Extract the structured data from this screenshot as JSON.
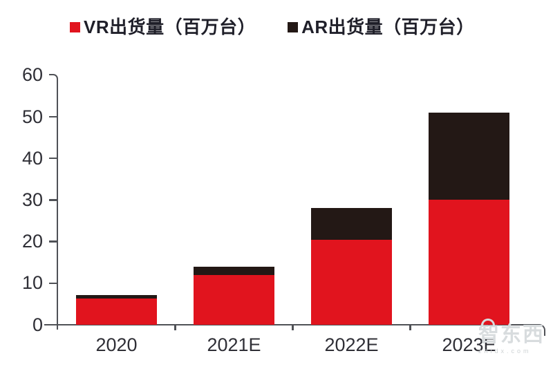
{
  "legend": [
    {
      "label": "VR出货量（百万台）",
      "color": "#E1141E"
    },
    {
      "label": "AR出货量（百万台）",
      "color": "#231815"
    }
  ],
  "chart_data": {
    "type": "bar",
    "stacked": true,
    "categories": [
      "2020",
      "2021E",
      "2022E",
      "2023E"
    ],
    "series": [
      {
        "name": "VR出货量（百万台）",
        "color": "#E1141E",
        "values": [
          6.3,
          12.0,
          20.5,
          30.0
        ]
      },
      {
        "name": "AR出货量（百万台）",
        "color": "#231815",
        "values": [
          0.8,
          2.0,
          7.5,
          21.0
        ]
      }
    ],
    "totals": [
      7.1,
      14.0,
      28.0,
      51.0
    ],
    "title": "",
    "xlabel": "",
    "ylabel": "",
    "ylim": [
      0,
      60
    ],
    "yticks": [
      0,
      10,
      20,
      30,
      40,
      50,
      60
    ],
    "grid": false,
    "legend_position": "top",
    "axis_color": "#4f5156"
  },
  "watermark": {
    "logo_text": "智东西",
    "sub_text": "zhidx.com"
  }
}
